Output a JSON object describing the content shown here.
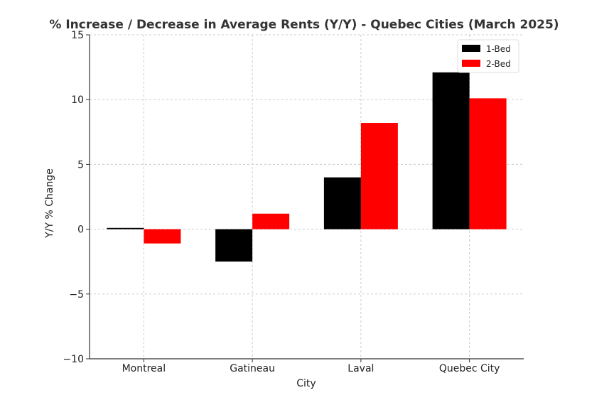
{
  "chart_data": {
    "type": "bar",
    "title": "% Increase / Decrease in Average Rents (Y/Y) - Quebec Cities (March 2025)",
    "xlabel": "City",
    "ylabel": "Y/Y % Change",
    "categories": [
      "Montreal",
      "Gatineau",
      "Laval",
      "Quebec City"
    ],
    "series": [
      {
        "name": "1-Bed",
        "values": [
          0.1,
          -2.5,
          4.0,
          12.1
        ],
        "color": "#000000"
      },
      {
        "name": "2-Bed",
        "values": [
          -1.1,
          1.2,
          8.2,
          10.1
        ],
        "color": "#ff0000"
      }
    ],
    "ylim": [
      -10,
      15
    ],
    "yticks": [
      -10,
      -5,
      0,
      5,
      10,
      15
    ],
    "ytick_labels": [
      "−10",
      "−5",
      "0",
      "5",
      "10",
      "15"
    ],
    "grid": true,
    "legend_position": "top-right"
  }
}
